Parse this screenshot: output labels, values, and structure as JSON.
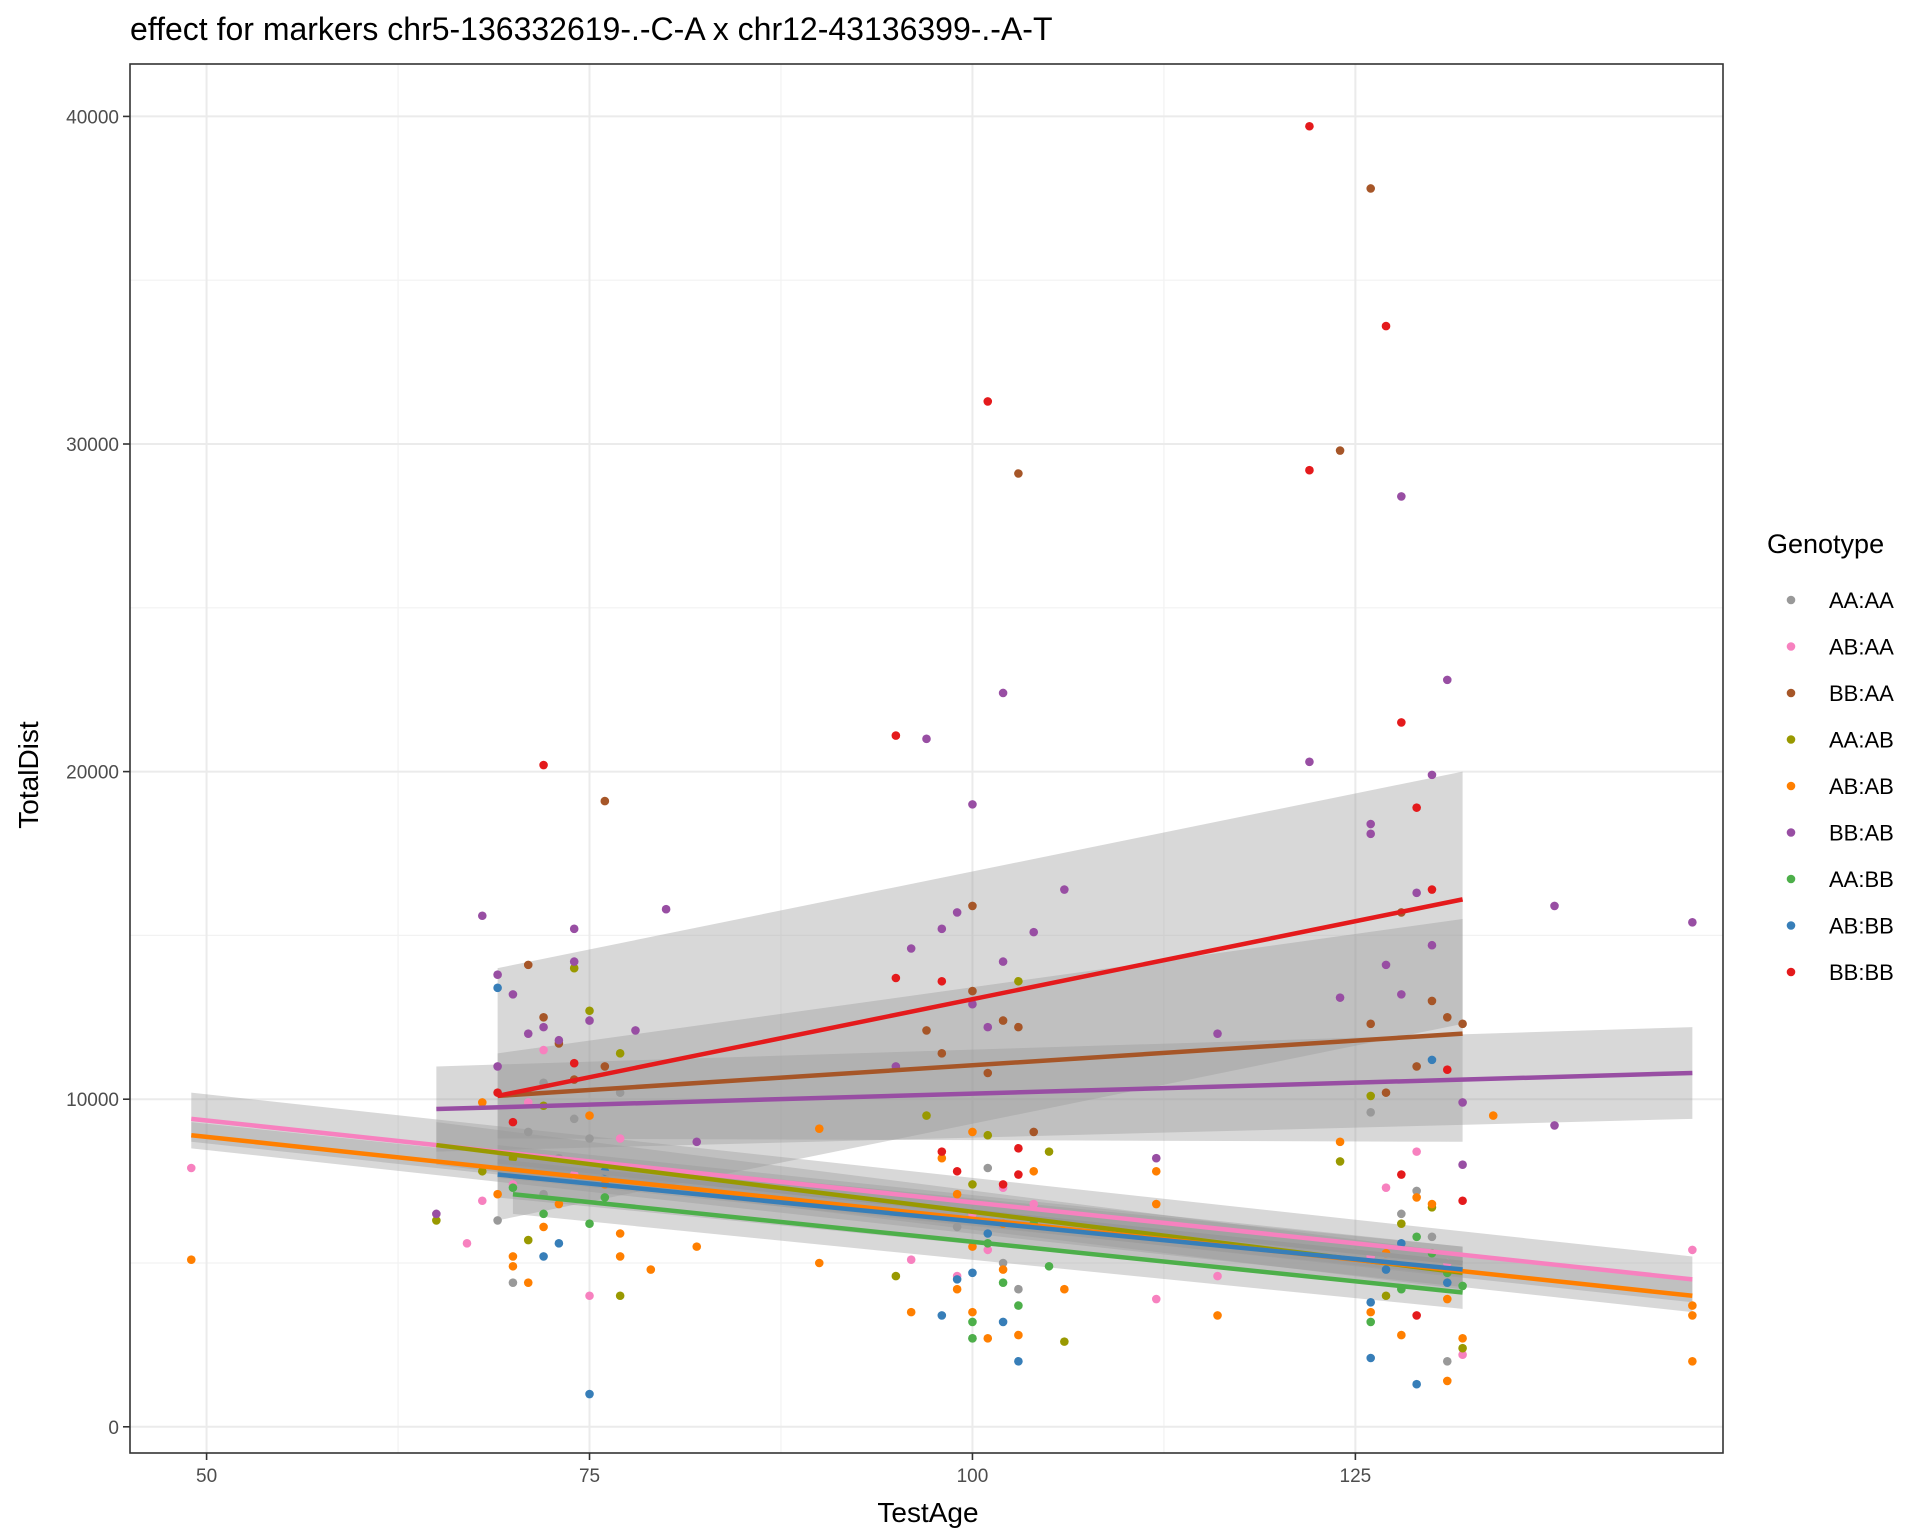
{
  "chart_data": {
    "type": "scatter",
    "title": "effect for markers chr5-136332619-.-C-A x chr12-43136399-.-A-T",
    "xlabel": "TestAge",
    "ylabel": "TotalDist",
    "xlim": [
      45,
      149
    ],
    "ylim": [
      -800,
      41600
    ],
    "x_ticks": [
      50,
      75,
      100,
      125
    ],
    "y_ticks": [
      0,
      10000,
      20000,
      30000,
      40000
    ],
    "x_tick_labels": [
      "50",
      "75",
      "100",
      "125"
    ],
    "y_tick_labels": [
      "0",
      "10000",
      "20000",
      "30000",
      "40000"
    ],
    "grid": true,
    "legend": {
      "title": "Genotype",
      "position": "right"
    },
    "series": [
      {
        "name": "AA:AA",
        "color": "#999999",
        "points": [
          [
            69,
            6300
          ],
          [
            70,
            4400
          ],
          [
            71,
            9000
          ],
          [
            72,
            7100
          ],
          [
            73,
            8200
          ],
          [
            74,
            9400
          ],
          [
            75,
            8800
          ],
          [
            76,
            7600
          ],
          [
            77,
            10200
          ],
          [
            101,
            7900
          ],
          [
            102,
            5000
          ],
          [
            103,
            4200
          ],
          [
            100,
            2700
          ],
          [
            126,
            9600
          ],
          [
            128,
            6500
          ],
          [
            129,
            7200
          ],
          [
            130,
            5800
          ],
          [
            131,
            2000
          ],
          [
            99,
            6100
          ],
          [
            72,
            10500
          ]
        ],
        "fit": [
          [
            69,
            8100
          ],
          [
            132,
            5000
          ]
        ],
        "ci": [
          [
            69,
            7600,
            8600
          ],
          [
            132,
            4600,
            5500
          ]
        ]
      },
      {
        "name": "AB:AA",
        "color": "#F781BF",
        "points": [
          [
            49,
            7900
          ],
          [
            67,
            5600
          ],
          [
            68,
            6900
          ],
          [
            70,
            7400
          ],
          [
            71,
            9900
          ],
          [
            72,
            11500
          ],
          [
            74,
            7700
          ],
          [
            75,
            4000
          ],
          [
            77,
            8800
          ],
          [
            96,
            5100
          ],
          [
            99,
            4600
          ],
          [
            100,
            6500
          ],
          [
            101,
            5400
          ],
          [
            102,
            7300
          ],
          [
            104,
            6800
          ],
          [
            112,
            3900
          ],
          [
            116,
            4600
          ],
          [
            126,
            5200
          ],
          [
            127,
            7300
          ],
          [
            129,
            8400
          ],
          [
            131,
            5000
          ],
          [
            132,
            2200
          ],
          [
            147,
            5400
          ]
        ],
        "fit": [
          [
            49,
            9400
          ],
          [
            147,
            4500
          ]
        ],
        "ci": [
          [
            49,
            8700,
            10200
          ],
          [
            147,
            3800,
            5200
          ]
        ]
      },
      {
        "name": "BB:AA",
        "color": "#A65628",
        "points": [
          [
            71,
            14100
          ],
          [
            72,
            12500
          ],
          [
            73,
            11700
          ],
          [
            74,
            10600
          ],
          [
            76,
            19100
          ],
          [
            76,
            11000
          ],
          [
            97,
            12100
          ],
          [
            98,
            11400
          ],
          [
            100,
            15900
          ],
          [
            100,
            13300
          ],
          [
            101,
            10800
          ],
          [
            102,
            12400
          ],
          [
            103,
            29100
          ],
          [
            103,
            12200
          ],
          [
            104,
            9000
          ],
          [
            124,
            29800
          ],
          [
            126,
            37800
          ],
          [
            126,
            12300
          ],
          [
            127,
            10200
          ],
          [
            128,
            15700
          ],
          [
            129,
            11000
          ],
          [
            130,
            13000
          ],
          [
            131,
            12500
          ],
          [
            132,
            12300
          ]
        ],
        "fit": [
          [
            69,
            10100
          ],
          [
            132,
            12000
          ]
        ],
        "ci": [
          [
            69,
            8800,
            11400
          ],
          [
            132,
            8700,
            15500
          ]
        ]
      },
      {
        "name": "AA:AB",
        "color": "#999900",
        "points": [
          [
            65,
            6300
          ],
          [
            68,
            7800
          ],
          [
            70,
            8200
          ],
          [
            71,
            5700
          ],
          [
            72,
            9800
          ],
          [
            74,
            14000
          ],
          [
            75,
            12700
          ],
          [
            77,
            11400
          ],
          [
            77,
            4000
          ],
          [
            95,
            4600
          ],
          [
            97,
            9500
          ],
          [
            100,
            7400
          ],
          [
            101,
            8900
          ],
          [
            103,
            13600
          ],
          [
            105,
            8400
          ],
          [
            106,
            2600
          ],
          [
            124,
            8100
          ],
          [
            126,
            10100
          ],
          [
            127,
            4000
          ],
          [
            128,
            6200
          ],
          [
            130,
            6700
          ],
          [
            132,
            2400
          ]
        ],
        "fit": [
          [
            65,
            8600
          ],
          [
            132,
            4700
          ]
        ],
        "ci": [
          [
            65,
            8000,
            9300
          ],
          [
            132,
            4200,
            5300
          ]
        ]
      },
      {
        "name": "AB:AB",
        "color": "#FF7F00",
        "points": [
          [
            49,
            5100
          ],
          [
            68,
            9900
          ],
          [
            69,
            7100
          ],
          [
            70,
            5200
          ],
          [
            70,
            4900
          ],
          [
            71,
            4400
          ],
          [
            72,
            6100
          ],
          [
            73,
            6800
          ],
          [
            75,
            9500
          ],
          [
            76,
            7400
          ],
          [
            77,
            5200
          ],
          [
            77,
            5900
          ],
          [
            79,
            4800
          ],
          [
            82,
            5500
          ],
          [
            90,
            9100
          ],
          [
            90,
            5000
          ],
          [
            96,
            3500
          ],
          [
            98,
            8200
          ],
          [
            99,
            7100
          ],
          [
            99,
            4200
          ],
          [
            100,
            3500
          ],
          [
            100,
            5500
          ],
          [
            100,
            9000
          ],
          [
            101,
            2700
          ],
          [
            102,
            6200
          ],
          [
            102,
            4800
          ],
          [
            103,
            2800
          ],
          [
            104,
            7800
          ],
          [
            106,
            4200
          ],
          [
            112,
            7800
          ],
          [
            112,
            6800
          ],
          [
            116,
            3400
          ],
          [
            124,
            8700
          ],
          [
            126,
            3500
          ],
          [
            127,
            5300
          ],
          [
            128,
            2800
          ],
          [
            129,
            7000
          ],
          [
            130,
            6800
          ],
          [
            131,
            1400
          ],
          [
            131,
            3900
          ],
          [
            132,
            2700
          ],
          [
            134,
            9500
          ],
          [
            147,
            3700
          ],
          [
            147,
            3400
          ],
          [
            147,
            2000
          ]
        ],
        "fit": [
          [
            49,
            8900
          ],
          [
            147,
            4000
          ]
        ],
        "ci": [
          [
            49,
            8500,
            9300
          ],
          [
            147,
            3500,
            4500
          ]
        ]
      },
      {
        "name": "BB:AB",
        "color": "#984EA3",
        "points": [
          [
            65,
            6500
          ],
          [
            68,
            15600
          ],
          [
            69,
            13800
          ],
          [
            69,
            11000
          ],
          [
            70,
            13200
          ],
          [
            71,
            12000
          ],
          [
            72,
            12200
          ],
          [
            73,
            11800
          ],
          [
            74,
            15200
          ],
          [
            74,
            14200
          ],
          [
            75,
            12400
          ],
          [
            78,
            12100
          ],
          [
            80,
            15800
          ],
          [
            82,
            8700
          ],
          [
            95,
            11000
          ],
          [
            96,
            14600
          ],
          [
            97,
            21000
          ],
          [
            98,
            15200
          ],
          [
            99,
            15700
          ],
          [
            100,
            19000
          ],
          [
            100,
            12900
          ],
          [
            101,
            12200
          ],
          [
            102,
            22400
          ],
          [
            102,
            14200
          ],
          [
            104,
            15100
          ],
          [
            106,
            16400
          ],
          [
            112,
            8200
          ],
          [
            116,
            12000
          ],
          [
            122,
            20300
          ],
          [
            124,
            13100
          ],
          [
            126,
            18400
          ],
          [
            126,
            18100
          ],
          [
            127,
            14100
          ],
          [
            128,
            28400
          ],
          [
            128,
            13200
          ],
          [
            129,
            16300
          ],
          [
            130,
            14700
          ],
          [
            130,
            19900
          ],
          [
            131,
            22800
          ],
          [
            132,
            9900
          ],
          [
            132,
            8000
          ],
          [
            138,
            15900
          ],
          [
            138,
            9200
          ],
          [
            147,
            15400
          ]
        ],
        "fit": [
          [
            65,
            9700
          ],
          [
            147,
            10800
          ]
        ],
        "ci": [
          [
            65,
            8400,
            11000
          ],
          [
            147,
            9400,
            12200
          ]
        ]
      },
      {
        "name": "AA:BB",
        "color": "#4DAF4A",
        "points": [
          [
            70,
            7300
          ],
          [
            72,
            6500
          ],
          [
            75,
            6200
          ],
          [
            76,
            7000
          ],
          [
            100,
            2700
          ],
          [
            100,
            3200
          ],
          [
            101,
            5600
          ],
          [
            102,
            4400
          ],
          [
            103,
            3700
          ],
          [
            104,
            6200
          ],
          [
            105,
            4900
          ],
          [
            126,
            3200
          ],
          [
            128,
            4200
          ],
          [
            129,
            5800
          ],
          [
            130,
            5300
          ],
          [
            131,
            4700
          ],
          [
            132,
            4300
          ]
        ],
        "fit": [
          [
            70,
            7100
          ],
          [
            132,
            4100
          ]
        ],
        "ci": [
          [
            70,
            6500,
            7700
          ],
          [
            132,
            3600,
            4700
          ]
        ]
      },
      {
        "name": "AB:BB",
        "color": "#377EB8",
        "points": [
          [
            69,
            13400
          ],
          [
            72,
            5200
          ],
          [
            73,
            5600
          ],
          [
            75,
            1000
          ],
          [
            76,
            7800
          ],
          [
            98,
            3400
          ],
          [
            99,
            4500
          ],
          [
            100,
            4700
          ],
          [
            101,
            5900
          ],
          [
            102,
            3200
          ],
          [
            103,
            2000
          ],
          [
            126,
            3800
          ],
          [
            126,
            2100
          ],
          [
            127,
            4800
          ],
          [
            128,
            5600
          ],
          [
            129,
            1300
          ],
          [
            130,
            11200
          ],
          [
            131,
            4400
          ]
        ],
        "fit": [
          [
            69,
            7700
          ],
          [
            132,
            4800
          ]
        ],
        "ci": [
          [
            69,
            7000,
            8400
          ],
          [
            132,
            4100,
            5500
          ]
        ]
      },
      {
        "name": "BB:BB",
        "color": "#E41A1C",
        "points": [
          [
            69,
            10200
          ],
          [
            70,
            9300
          ],
          [
            72,
            20200
          ],
          [
            74,
            11100
          ],
          [
            95,
            21100
          ],
          [
            95,
            13700
          ],
          [
            98,
            13600
          ],
          [
            98,
            8400
          ],
          [
            99,
            7800
          ],
          [
            101,
            31300
          ],
          [
            102,
            7400
          ],
          [
            103,
            8500
          ],
          [
            103,
            7700
          ],
          [
            122,
            39700
          ],
          [
            122,
            29200
          ],
          [
            127,
            33600
          ],
          [
            128,
            21500
          ],
          [
            128,
            7700
          ],
          [
            129,
            18900
          ],
          [
            129,
            3400
          ],
          [
            130,
            16400
          ],
          [
            131,
            10900
          ],
          [
            132,
            6900
          ]
        ],
        "fit": [
          [
            69,
            10100
          ],
          [
            132,
            16100
          ]
        ],
        "ci": [
          [
            69,
            6300,
            14000
          ],
          [
            132,
            12300,
            20000
          ]
        ]
      }
    ]
  }
}
